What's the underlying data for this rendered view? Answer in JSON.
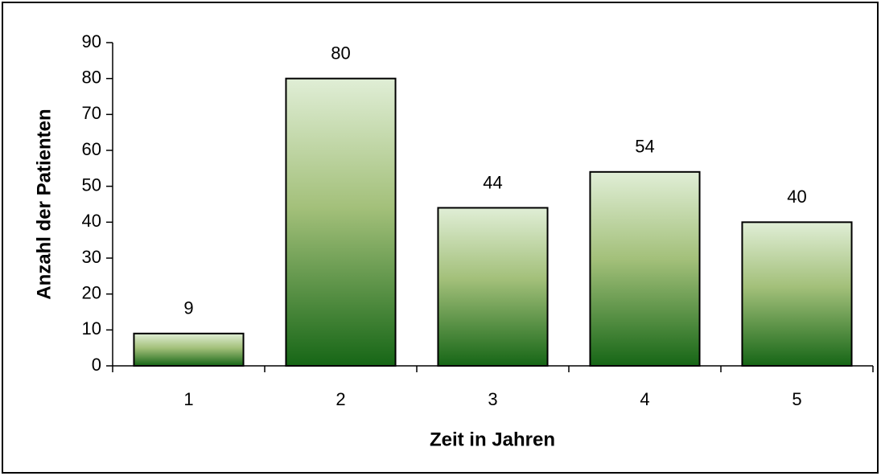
{
  "chart_data": {
    "type": "bar",
    "categories": [
      "1",
      "2",
      "3",
      "4",
      "5"
    ],
    "values": [
      9,
      80,
      44,
      54,
      40
    ],
    "color": "#1a6b1a",
    "xlabel": "Zeit in Jahren",
    "ylabel": "Anzahl der Patienten",
    "ylim": [
      0,
      90
    ],
    "yticks": [
      0,
      10,
      20,
      30,
      40,
      50,
      60,
      70,
      80,
      90
    ],
    "grid": false
  }
}
